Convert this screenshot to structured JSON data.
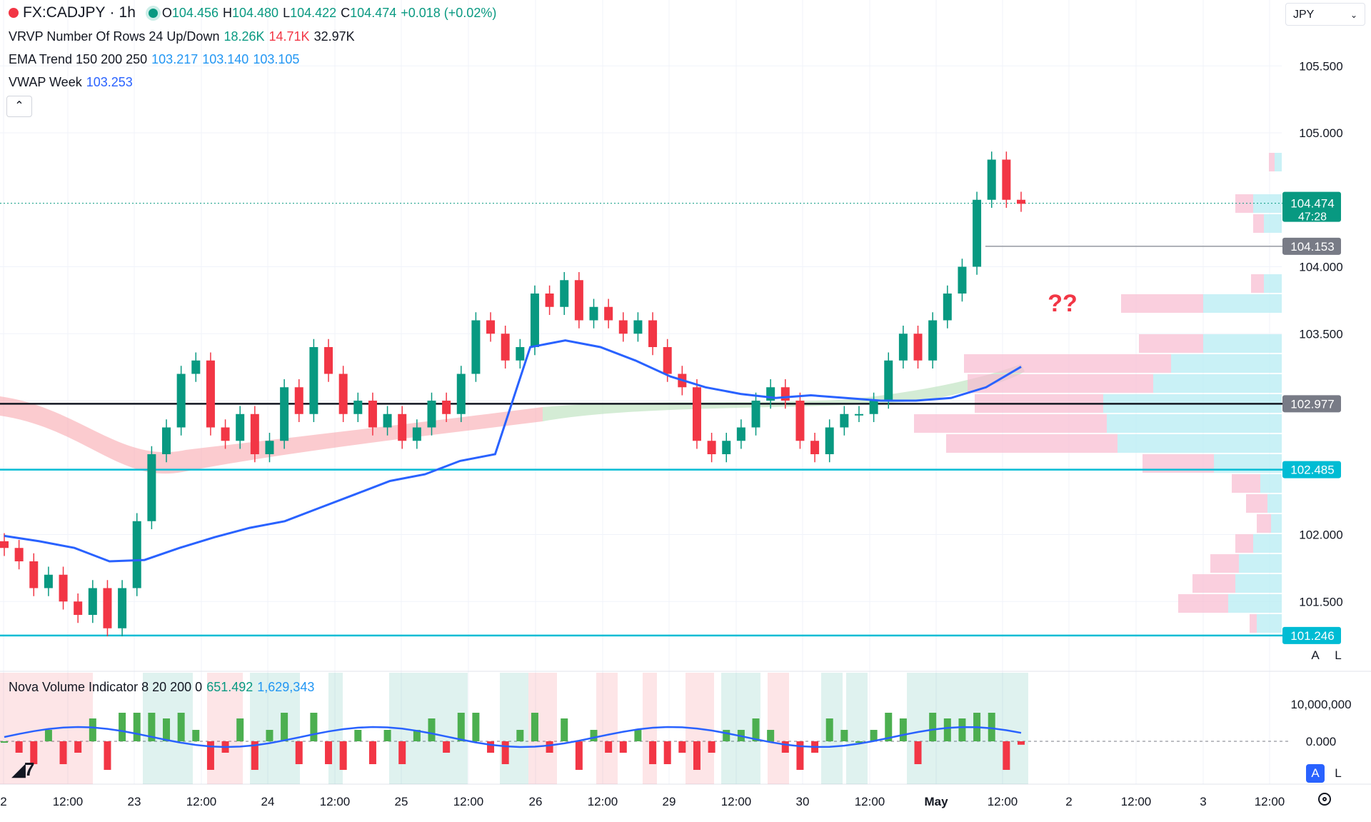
{
  "header": {
    "symbol": "FX:CADJPY",
    "separator": "·",
    "interval": "1h",
    "o_label": "O",
    "open": "104.456",
    "h_label": "H",
    "high": "104.480",
    "l_label": "L",
    "low": "104.422",
    "c_label": "C",
    "close": "104.474",
    "change": "+0.018 (+0.02%)"
  },
  "indicators": {
    "vrvp": {
      "label": "VRVP Number Of Rows 24 Up/Down",
      "up": "18.26K",
      "down": "14.71K",
      "total": "32.97K"
    },
    "ema": {
      "label": "EMA Trend 150 200 250",
      "v1": "103.217",
      "v2": "103.140",
      "v3": "103.105"
    },
    "vwap": {
      "label": "VWAP Week",
      "value": "103.253"
    },
    "nova": {
      "label": "Nova Volume Indicator 8 20 200 0",
      "v1": "651.492",
      "v2": "1,629,343"
    }
  },
  "currency_select": {
    "value": "JPY"
  },
  "annotation": "??",
  "scale_buttons": {
    "auto": "A",
    "log": "L"
  },
  "colors": {
    "up": "#089981",
    "down": "#f23645",
    "vwap": "#2962ff",
    "level": "#00bcd4",
    "level_black": "#131722"
  },
  "chart_data": {
    "type": "candlestick",
    "symbol": "FX:CADJPY",
    "interval": "1h",
    "ylim": [
      101.1,
      105.9
    ],
    "y_ticks": [
      "105.500",
      "105.000",
      "104.000",
      "103.500",
      "102.000",
      "101.500"
    ],
    "x_ticks": [
      "2",
      "12:00",
      "23",
      "12:00",
      "24",
      "12:00",
      "25",
      "12:00",
      "26",
      "12:00",
      "29",
      "12:00",
      "30",
      "12:00",
      "May",
      "12:00",
      "2",
      "12:00",
      "3",
      "12:00"
    ],
    "last_price": "104.474",
    "countdown": "47:28",
    "horizontal_levels": [
      {
        "price": "104.153",
        "style": "gray"
      },
      {
        "price": "102.977",
        "style": "black"
      },
      {
        "price": "102.485",
        "style": "cyan"
      },
      {
        "price": "101.246",
        "style": "cyan"
      }
    ],
    "close_path": [
      101.9,
      101.8,
      101.6,
      101.7,
      101.5,
      101.4,
      101.6,
      101.3,
      101.6,
      102.1,
      102.6,
      102.8,
      103.2,
      103.3,
      102.8,
      102.7,
      102.9,
      102.6,
      102.7,
      103.1,
      102.9,
      103.4,
      103.2,
      102.9,
      103.0,
      102.8,
      102.9,
      102.7,
      102.8,
      103.0,
      102.9,
      103.2,
      103.6,
      103.5,
      103.3,
      103.4,
      103.8,
      103.7,
      103.9,
      103.6,
      103.7,
      103.6,
      103.5,
      103.6,
      103.4,
      103.2,
      103.1,
      102.7,
      102.6,
      102.7,
      102.8,
      103.0,
      103.1,
      103.0,
      102.7,
      102.6,
      102.8,
      102.9,
      102.9,
      103.0,
      103.3,
      103.5,
      103.3,
      103.6,
      103.8,
      104.0,
      104.5,
      104.8,
      104.5,
      104.47
    ],
    "vwap_path": [
      101.99,
      101.95,
      101.9,
      101.8,
      101.81,
      101.9,
      101.98,
      102.05,
      102.1,
      102.2,
      102.3,
      102.4,
      102.45,
      102.55,
      102.6,
      103.4,
      103.45,
      103.4,
      103.3,
      103.18,
      103.1,
      103.05,
      103.02,
      103.04,
      103.02,
      103.0,
      103.0,
      103.02,
      103.1,
      103.253
    ],
    "nova": {
      "ylim": [
        -6000000,
        12000000
      ],
      "y_ticks": [
        "10,000,000",
        "0.000"
      ]
    }
  }
}
